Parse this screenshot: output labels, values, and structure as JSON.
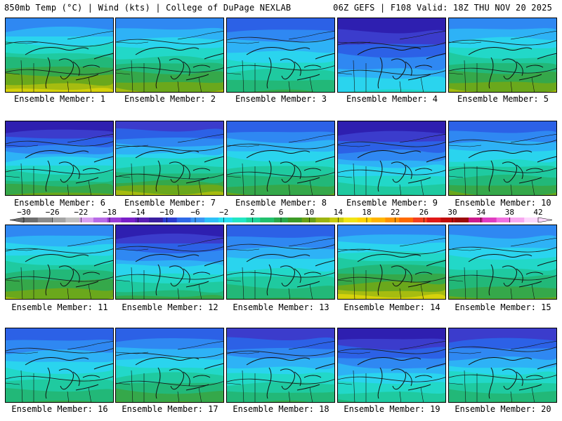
{
  "header": {
    "left": "850mb Temp (°C) | Wind (kts) | College of DuPage NEXLAB",
    "right": "06Z GEFS | F108 Valid: 18Z THU NOV 20 2025"
  },
  "panel_label_prefix": "Ensemble Member: ",
  "members": [
    1,
    2,
    3,
    4,
    5,
    6,
    7,
    8,
    9,
    10,
    11,
    12,
    13,
    14,
    15,
    16,
    17,
    18,
    19,
    20
  ],
  "colorbar": {
    "tick_labels": [
      "-30",
      "-26",
      "-22",
      "-18",
      "-14",
      "-10",
      "-6",
      "-2",
      "2",
      "6",
      "10",
      "14",
      "18",
      "22",
      "26",
      "30",
      "34",
      "38",
      "42"
    ],
    "colors": [
      "#6e6e6e",
      "#8a8a8a",
      "#a4a4a4",
      "#c0c0c0",
      "#d9a0f0",
      "#b86be6",
      "#9a3cd6",
      "#7a1fc8",
      "#5a1eb4",
      "#3a1fa0",
      "#2b3cd0",
      "#2f6ae8",
      "#3a96f4",
      "#2ec0f8",
      "#27e0f0",
      "#22e6c4",
      "#1fd49a",
      "#22c06e",
      "#2aa84a",
      "#3c9a26",
      "#6aa018",
      "#9cb410",
      "#c8cc0c",
      "#f0e414",
      "#ffd400",
      "#ffb400",
      "#ff9200",
      "#ff6a00",
      "#f44020",
      "#e01818",
      "#c00c0c",
      "#9c0a0a",
      "#cc1a8c",
      "#e03cc0",
      "#f070e0",
      "#f8a8f0",
      "#fcd8fc"
    ]
  }
}
